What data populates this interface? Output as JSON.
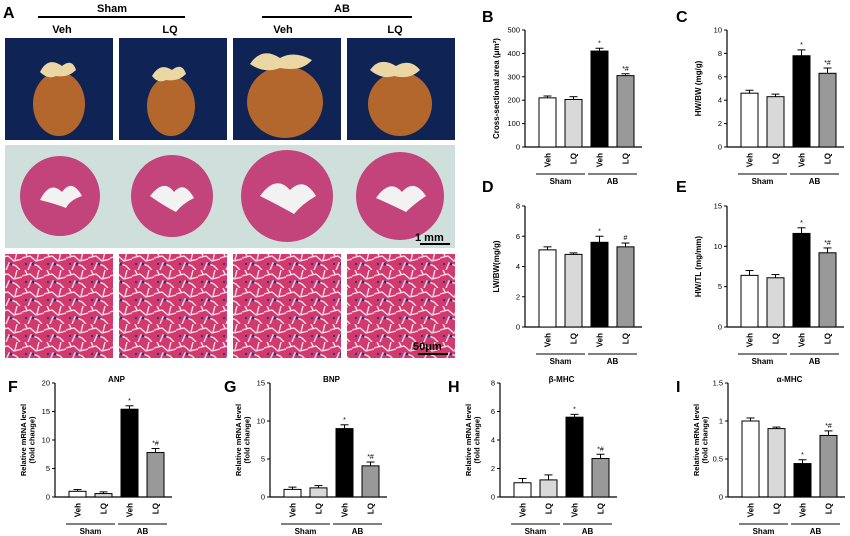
{
  "panelA": {
    "letter": "A",
    "groups": [
      {
        "label": "Sham",
        "cols": [
          "Veh",
          "LQ"
        ]
      },
      {
        "label": "AB",
        "cols": [
          "Veh",
          "LQ"
        ]
      }
    ],
    "scale_top": "1 mm",
    "scale_bottom": "50μm"
  },
  "colors": {
    "veh_sham": "#ffffff",
    "lq_sham": "#d9d9d9",
    "veh_ab": "#000000",
    "lq_ab": "#999999",
    "tissue": "#c2447a",
    "bg_tissue": "#cfe0dc",
    "heart": "#b86a2c"
  },
  "chart_data": [
    {
      "letter": "B",
      "type": "bar",
      "title": "",
      "ylabel": "Cross-sectional area (μm²)",
      "categories": [
        "Veh",
        "LQ",
        "Veh",
        "LQ"
      ],
      "groups": [
        "Sham",
        "AB"
      ],
      "values": [
        210,
        203,
        410,
        305
      ],
      "errors": [
        8,
        12,
        12,
        8
      ],
      "ylim": [
        0,
        500
      ],
      "yticks": [
        0,
        100,
        200,
        300,
        400,
        500
      ],
      "annotations": [
        "",
        "",
        "*",
        "*#"
      ]
    },
    {
      "letter": "C",
      "type": "bar",
      "title": "",
      "ylabel": "HW/BW (mg/g)",
      "categories": [
        "Veh",
        "LQ",
        "Veh",
        "LQ"
      ],
      "groups": [
        "Sham",
        "AB"
      ],
      "values": [
        4.6,
        4.3,
        7.8,
        6.3
      ],
      "errors": [
        0.25,
        0.22,
        0.5,
        0.45
      ],
      "ylim": [
        0,
        10
      ],
      "yticks": [
        0,
        2,
        4,
        6,
        8,
        10
      ],
      "annotations": [
        "",
        "",
        "*",
        "*#"
      ]
    },
    {
      "letter": "D",
      "type": "bar",
      "title": "",
      "ylabel": "LW/BW(mg/g)",
      "categories": [
        "Veh",
        "LQ",
        "Veh",
        "LQ"
      ],
      "groups": [
        "Sham",
        "AB"
      ],
      "values": [
        5.1,
        4.8,
        5.6,
        5.3
      ],
      "errors": [
        0.2,
        0.1,
        0.4,
        0.25
      ],
      "ylim": [
        0,
        8
      ],
      "yticks": [
        0,
        2,
        4,
        6,
        8
      ],
      "annotations": [
        "",
        "",
        "*",
        "#"
      ]
    },
    {
      "letter": "E",
      "type": "bar",
      "title": "",
      "ylabel": "HW/TL (mg/mm)",
      "categories": [
        "Veh",
        "LQ",
        "Veh",
        "LQ"
      ],
      "groups": [
        "Sham",
        "AB"
      ],
      "values": [
        6.4,
        6.1,
        11.6,
        9.2
      ],
      "errors": [
        0.6,
        0.4,
        0.7,
        0.6
      ],
      "ylim": [
        0,
        15
      ],
      "yticks": [
        0,
        5,
        10,
        15
      ],
      "annotations": [
        "",
        "",
        "*",
        "*#"
      ]
    },
    {
      "letter": "F",
      "type": "bar",
      "title": "ANP",
      "ylabel": "Relative mRNA level (fold change)",
      "categories": [
        "Veh",
        "LQ",
        "Veh",
        "LQ"
      ],
      "groups": [
        "Sham",
        "AB"
      ],
      "values": [
        1.0,
        0.6,
        15.4,
        7.8
      ],
      "errors": [
        0.3,
        0.3,
        0.6,
        0.7
      ],
      "ylim": [
        0,
        20
      ],
      "yticks": [
        0,
        5,
        10,
        15,
        20
      ],
      "annotations": [
        "",
        "",
        "*",
        "*#"
      ]
    },
    {
      "letter": "G",
      "type": "bar",
      "title": "BNP",
      "ylabel": "Relative mRNA level (fold change)",
      "categories": [
        "Veh",
        "LQ",
        "Veh",
        "LQ"
      ],
      "groups": [
        "Sham",
        "AB"
      ],
      "values": [
        1.0,
        1.2,
        9.0,
        4.1
      ],
      "errors": [
        0.3,
        0.3,
        0.5,
        0.5
      ],
      "ylim": [
        0,
        15
      ],
      "yticks": [
        0,
        5,
        10,
        15
      ],
      "annotations": [
        "",
        "",
        "*",
        "*#"
      ]
    },
    {
      "letter": "H",
      "type": "bar",
      "title": "β-MHC",
      "ylabel": "Relative mRNA level (fold change)",
      "categories": [
        "Veh",
        "LQ",
        "Veh",
        "LQ"
      ],
      "groups": [
        "Sham",
        "AB"
      ],
      "values": [
        1.0,
        1.2,
        5.6,
        2.7
      ],
      "errors": [
        0.3,
        0.35,
        0.2,
        0.3
      ],
      "ylim": [
        0,
        8
      ],
      "yticks": [
        0,
        2,
        4,
        6,
        8
      ],
      "annotations": [
        "",
        "",
        "*",
        "*#"
      ]
    },
    {
      "letter": "I",
      "type": "bar",
      "title": "α-MHC",
      "ylabel": "Relative mRNA level (fold change)",
      "categories": [
        "Veh",
        "LQ",
        "Veh",
        "LQ"
      ],
      "groups": [
        "Sham",
        "AB"
      ],
      "values": [
        1.0,
        0.9,
        0.44,
        0.81
      ],
      "errors": [
        0.04,
        0.02,
        0.05,
        0.06
      ],
      "ylim": [
        0,
        1.5
      ],
      "yticks": [
        0.0,
        0.5,
        1.0,
        1.5
      ],
      "annotations": [
        "",
        "",
        "*",
        "*#"
      ]
    }
  ]
}
